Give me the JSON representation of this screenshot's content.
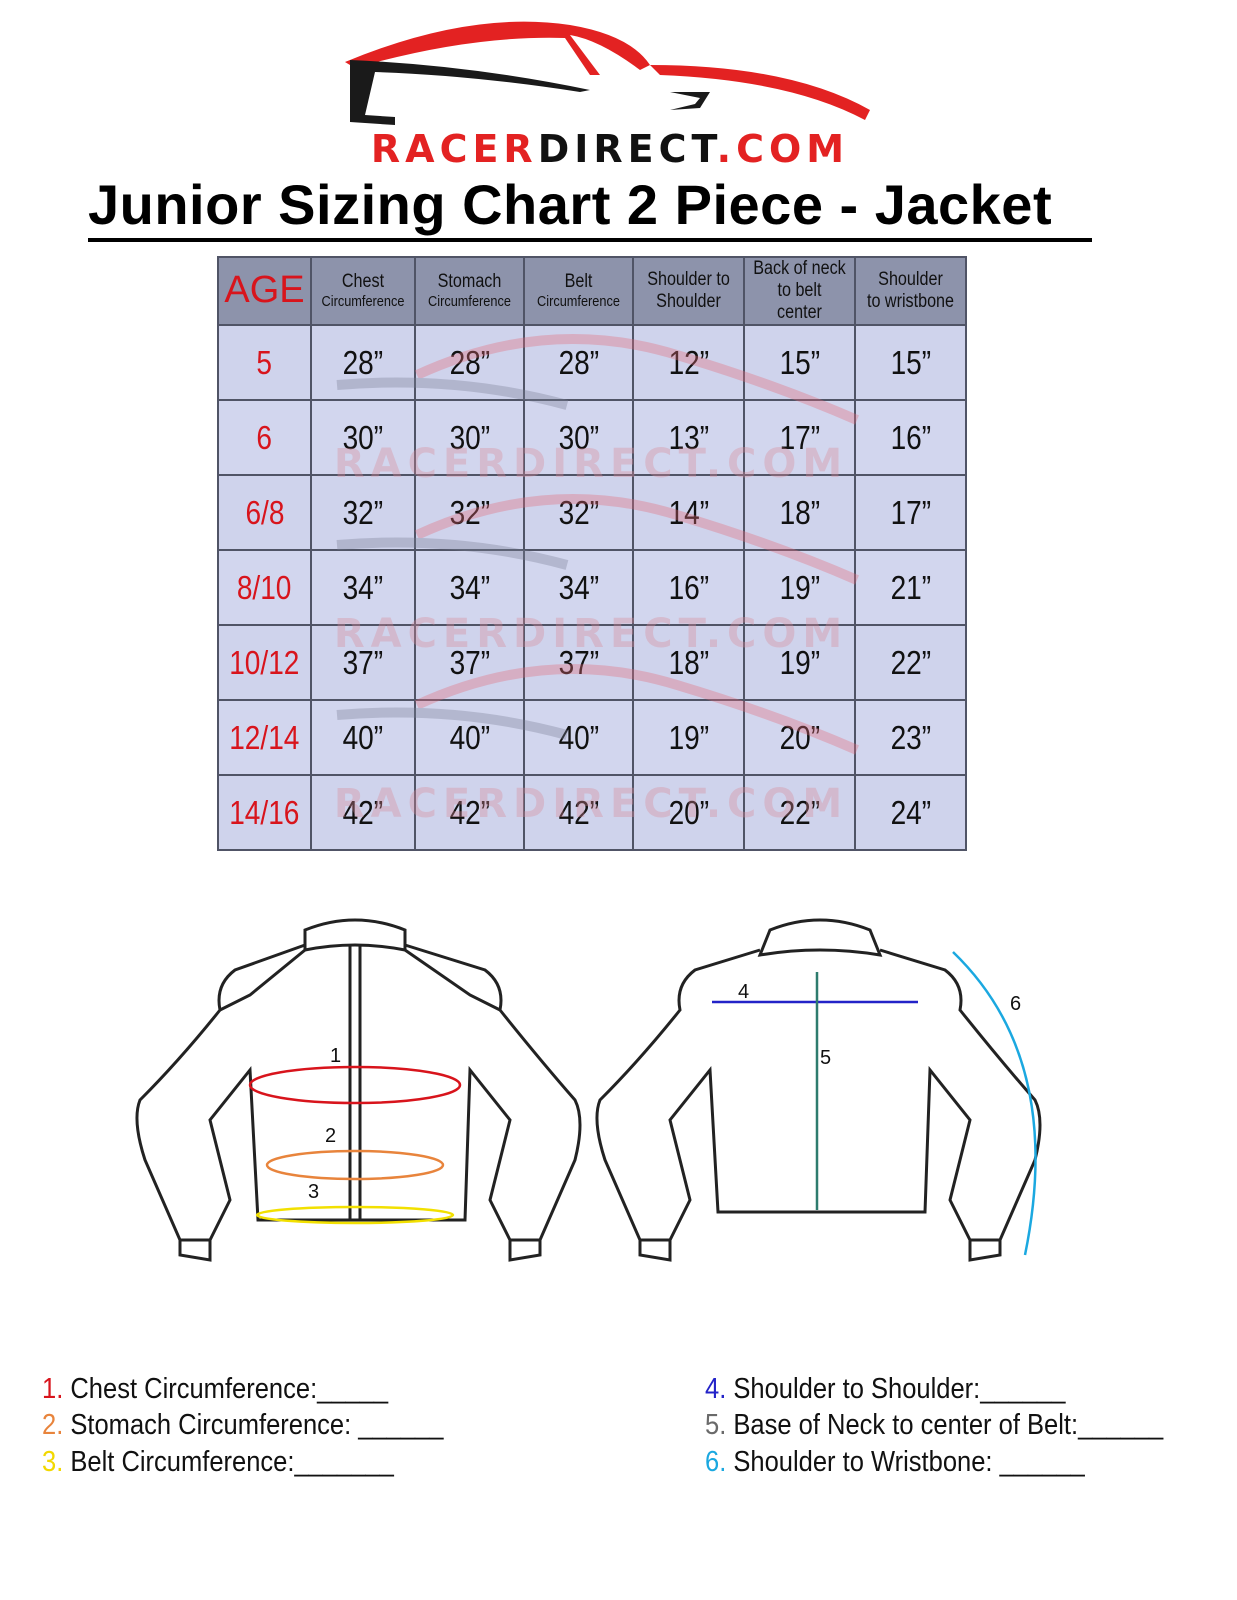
{
  "logo": {
    "text_red1": "RACER",
    "text_black": "DIRECT",
    "text_red2": ".COM"
  },
  "title": "Junior Sizing Chart 2 Piece - Jacket",
  "table": {
    "headers": [
      {
        "l1": "AGE",
        "l2": ""
      },
      {
        "l1": "Chest",
        "l2": "Circumference"
      },
      {
        "l1": "Stomach",
        "l2": "Circumference"
      },
      {
        "l1": "Belt",
        "l2": "Circumference"
      },
      {
        "l1": "Shoulder to",
        "l2": "Shoulder"
      },
      {
        "l1": "Back of neck",
        "l2": "to belt center"
      },
      {
        "l1": "Shoulder",
        "l2": "to wristbone"
      }
    ],
    "rows": [
      [
        "5",
        "28”",
        "28”",
        "28”",
        "12”",
        "15”",
        "15”"
      ],
      [
        "6",
        "30”",
        "30”",
        "30”",
        "13”",
        "17”",
        "16”"
      ],
      [
        "6/8",
        "32”",
        "32”",
        "32”",
        "14”",
        "18”",
        "17”"
      ],
      [
        "8/10",
        "34”",
        "34”",
        "34”",
        "16”",
        "19”",
        "21”"
      ],
      [
        "10/12",
        "37”",
        "37”",
        "37”",
        "18”",
        "19”",
        "22”"
      ],
      [
        "12/14",
        "40”",
        "40”",
        "40”",
        "19”",
        "20”",
        "23”"
      ],
      [
        "14/16",
        "42”",
        "42”",
        "42”",
        "20”",
        "22”",
        "24”"
      ]
    ]
  },
  "diagram": {
    "labels": [
      "1",
      "2",
      "3",
      "4",
      "5",
      "6"
    ],
    "colors": [
      "#d8141c",
      "#e8843c",
      "#f2e000",
      "#2323c8",
      "#2e7c6e",
      "#1ba8e0"
    ]
  },
  "legend": [
    {
      "num": "1.",
      "text": "Chest Circumference:_____",
      "color": "#d8141c"
    },
    {
      "num": "2.",
      "text": "Stomach Circumference: ______",
      "color": "#e8843c"
    },
    {
      "num": "3.",
      "text": "Belt Circumference:_______",
      "color": "#f2d800"
    },
    {
      "num": "4.",
      "text": "Shoulder to Shoulder:______",
      "color": "#2323c8"
    },
    {
      "num": "5.",
      "text": "Base of Neck to center of Belt:______",
      "color": "#6a6a6a"
    },
    {
      "num": "6.",
      "text": "Shoulder to Wristbone: ______",
      "color": "#1ba8e0"
    }
  ]
}
